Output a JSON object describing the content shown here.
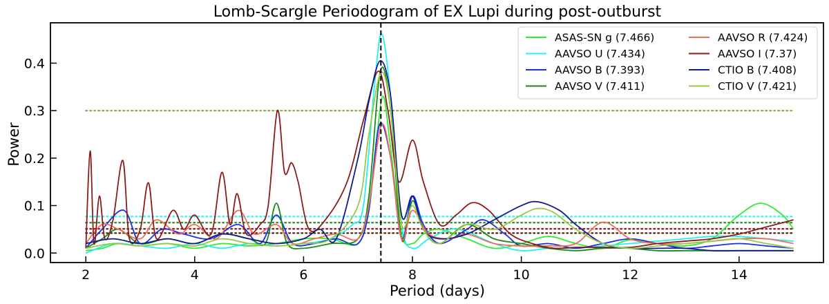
{
  "chart_data": {
    "type": "line",
    "title": "Lomb-Scargle Periodogram of EX Lupi during post-outburst",
    "xlabel": "Period (days)",
    "ylabel": "Power",
    "xlim": [
      1.35,
      15.55
    ],
    "ylim": [
      -0.02,
      0.485
    ],
    "xticks": [
      2,
      4,
      6,
      8,
      10,
      12,
      14
    ],
    "yticks": [
      0.0,
      0.1,
      0.2,
      0.3,
      0.4
    ],
    "ytick_labels": [
      "0.0",
      "0.1",
      "0.2",
      "0.3",
      "0.4"
    ],
    "vline": {
      "x": 7.42,
      "style": "dashed",
      "color": "#000000"
    },
    "threshold_lines": [
      {
        "y": 0.3,
        "xrange": [
          2,
          15
        ],
        "color": "#7fb347"
      },
      {
        "y": 0.077,
        "xrange": [
          2,
          15
        ],
        "color": "#33f0f0"
      },
      {
        "y": 0.064,
        "xrange": [
          2,
          15
        ],
        "color": "#2e8b2e"
      },
      {
        "y": 0.051,
        "xrange": [
          2,
          15
        ],
        "color": "#8b1a1a"
      },
      {
        "y": 0.042,
        "xrange": [
          2,
          15
        ],
        "color": "#4a2a10"
      }
    ],
    "legend_position": "top-right",
    "legend_columns": [
      [
        "ASAS-SN g (7.466)",
        "AAVSO U (7.434)",
        "AAVSO B (7.393)",
        "AAVSO V (7.411)"
      ],
      [
        "AAVSO R (7.424)",
        "AAVSO I (7.37)",
        "CTIO B (7.408)",
        "CTIO V (7.421)"
      ]
    ],
    "series": [
      {
        "name": "ASAS-SN g (7.466)",
        "color": "#2eec2e",
        "x": [
          2,
          2.3,
          2.6,
          3,
          3.5,
          4,
          4.5,
          5,
          5.5,
          6,
          6.5,
          7,
          7.2,
          7.35,
          7.466,
          7.6,
          7.8,
          8,
          8.2,
          8.5,
          9,
          9.5,
          10,
          10.5,
          11,
          11.5,
          12,
          12.5,
          13,
          13.5,
          14,
          14.4,
          14.8,
          15
        ],
        "values": [
          0.005,
          0.01,
          0.02,
          0.015,
          0.02,
          0.01,
          0.02,
          0.015,
          0.02,
          0.03,
          0.03,
          0.02,
          0.1,
          0.25,
          0.33,
          0.22,
          0.04,
          0.02,
          0.04,
          0.05,
          0.03,
          0.01,
          0.02,
          0.035,
          0.02,
          0.01,
          0.028,
          0.02,
          0.015,
          0.03,
          0.08,
          0.105,
          0.08,
          0.05
        ]
      },
      {
        "name": "AAVSO U (7.434)",
        "color": "#22f0f0",
        "x": [
          2,
          2.5,
          3,
          3.5,
          4,
          4.5,
          5,
          5.5,
          6,
          6.5,
          6.9,
          7.1,
          7.3,
          7.434,
          7.6,
          7.8,
          8,
          8.3,
          8.7,
          9,
          9.5,
          10,
          10.5,
          11,
          11.5,
          12,
          12.5,
          13,
          13.5,
          14,
          14.5,
          15
        ],
        "values": [
          0.0,
          0.02,
          0.015,
          0.01,
          0.02,
          0.01,
          0.02,
          0.015,
          0.02,
          0.03,
          0.06,
          0.1,
          0.35,
          0.462,
          0.33,
          0.06,
          0.01,
          0.03,
          0.05,
          0.045,
          0.02,
          0.005,
          0.01,
          0.01,
          0.015,
          0.02,
          0.025,
          0.03,
          0.035,
          0.035,
          0.03,
          0.025
        ]
      },
      {
        "name": "AAVSO B (7.393)",
        "color": "#1a2ee8",
        "x": [
          2,
          2.3,
          2.7,
          3,
          3.4,
          3.8,
          4.3,
          4.8,
          5.2,
          5.5,
          5.8,
          6.2,
          6.6,
          7,
          7.2,
          7.393,
          7.6,
          7.8,
          8,
          8.2,
          8.5,
          9,
          9.3,
          9.7,
          10,
          10.5,
          11,
          11.5,
          12,
          12.5,
          13,
          13.5,
          14,
          14.5,
          15
        ],
        "values": [
          0.01,
          0.05,
          0.09,
          0.02,
          0.05,
          0.04,
          0.03,
          0.06,
          0.02,
          0.08,
          0.02,
          0.02,
          0.03,
          0.02,
          0.09,
          0.27,
          0.2,
          0.03,
          0.12,
          0.06,
          0.02,
          0.05,
          0.07,
          0.04,
          0.015,
          0.02,
          0.01,
          0.02,
          0.03,
          0.02,
          0.01,
          0.015,
          0.02,
          0.015,
          0.01
        ]
      },
      {
        "name": "AAVSO V (7.411)",
        "color": "#1a8a1a",
        "x": [
          2,
          2.3,
          2.6,
          3,
          3.5,
          4,
          4.5,
          5,
          5.3,
          5.5,
          5.7,
          6,
          6.5,
          7,
          7.2,
          7.411,
          7.6,
          7.8,
          8,
          8.2,
          8.5,
          9,
          9.5,
          10,
          10.5,
          11,
          11.5,
          12,
          12.5,
          13,
          13.5,
          14,
          14.5,
          15
        ],
        "values": [
          0.01,
          0.03,
          0.05,
          0.02,
          0.03,
          0.02,
          0.04,
          0.03,
          0.02,
          0.105,
          0.02,
          0.01,
          0.02,
          0.03,
          0.12,
          0.383,
          0.3,
          0.03,
          0.11,
          0.05,
          0.02,
          0.06,
          0.03,
          0.02,
          0.01,
          0.005,
          0.01,
          0.01,
          0.005,
          0.005,
          0.005,
          0.005,
          0.005,
          0.005
        ]
      },
      {
        "name": "AAVSO R (7.424)",
        "color": "#f26c5a",
        "x": [
          2,
          2.3,
          2.6,
          3,
          3.3,
          3.7,
          4,
          4.4,
          4.8,
          5.1,
          5.5,
          5.8,
          6.2,
          6.6,
          7,
          7.2,
          7.424,
          7.6,
          7.8,
          8,
          8.3,
          8.7,
          9,
          9.5,
          10,
          10.5,
          11,
          11.5,
          12,
          12.5,
          13,
          13.5,
          14,
          14.5,
          15
        ],
        "values": [
          0.02,
          0.06,
          0.05,
          0.03,
          0.07,
          0.04,
          0.06,
          0.03,
          0.09,
          0.04,
          0.06,
          0.02,
          0.03,
          0.04,
          0.03,
          0.1,
          0.268,
          0.2,
          0.03,
          0.09,
          0.04,
          0.03,
          0.04,
          0.02,
          0.015,
          0.015,
          0.02,
          0.065,
          0.03,
          0.02,
          0.02,
          0.025,
          0.03,
          0.03,
          0.02
        ]
      },
      {
        "name": "AAVSO I (7.37)",
        "color": "#8b1a1a",
        "x": [
          2,
          2.08,
          2.15,
          2.25,
          2.35,
          2.5,
          2.68,
          2.8,
          3.0,
          3.15,
          3.3,
          3.6,
          3.8,
          4.0,
          4.3,
          4.5,
          4.65,
          4.78,
          4.95,
          5.2,
          5.35,
          5.52,
          5.65,
          5.78,
          5.9,
          6.1,
          6.4,
          6.8,
          7.1,
          7.37,
          7.55,
          7.75,
          8.0,
          8.2,
          8.5,
          8.8,
          9.1,
          9.4,
          9.8,
          10.2,
          10.6,
          11.0,
          11.5,
          12.0,
          12.5,
          13.0,
          13.5,
          14.0,
          14.5,
          15
        ],
        "values": [
          0.01,
          0.215,
          0.02,
          0.12,
          0.03,
          0.07,
          0.195,
          0.03,
          0.05,
          0.148,
          0.03,
          0.09,
          0.05,
          0.08,
          0.04,
          0.17,
          0.06,
          0.125,
          0.04,
          0.06,
          0.1,
          0.3,
          0.17,
          0.19,
          0.15,
          0.05,
          0.07,
          0.15,
          0.28,
          0.383,
          0.3,
          0.15,
          0.238,
          0.15,
          0.06,
          0.08,
          0.106,
          0.09,
          0.04,
          0.02,
          0.01,
          0.012,
          0.012,
          0.012,
          0.02,
          0.025,
          0.03,
          0.04,
          0.055,
          0.07
        ]
      },
      {
        "name": "CTIO B (7.408)",
        "color": "#101c8a",
        "x": [
          2,
          2.5,
          3,
          3.5,
          4,
          4.5,
          5,
          5.5,
          6,
          6.3,
          6.6,
          7,
          7.2,
          7.408,
          7.6,
          7.8,
          8,
          8.2,
          8.5,
          9,
          9.5,
          10,
          10.3,
          10.7,
          11,
          11.5,
          12,
          12.5,
          13,
          13.5,
          14,
          14.5,
          15
        ],
        "values": [
          0.02,
          0.03,
          0.02,
          0.03,
          0.02,
          0.04,
          0.03,
          0.02,
          0.03,
          0.05,
          0.03,
          0.2,
          0.32,
          0.405,
          0.33,
          0.08,
          0.12,
          0.05,
          0.03,
          0.04,
          0.07,
          0.1,
          0.108,
          0.09,
          0.06,
          0.02,
          0.01,
          0.01,
          0.01,
          0.005,
          0.005,
          0.005,
          0.005
        ]
      },
      {
        "name": "CTIO V (7.421)",
        "color": "#9ac845",
        "x": [
          2,
          2.5,
          3,
          3.5,
          4,
          4.5,
          5,
          5.5,
          6,
          6.5,
          7,
          7.2,
          7.421,
          7.6,
          7.8,
          8,
          8.2,
          8.5,
          9,
          9.5,
          10,
          10.3,
          10.6,
          11,
          11.5,
          12,
          12.5,
          13,
          13.5,
          14,
          14.5,
          15
        ],
        "values": [
          0.01,
          0.02,
          0.015,
          0.02,
          0.015,
          0.03,
          0.02,
          0.015,
          0.02,
          0.03,
          0.1,
          0.25,
          0.38,
          0.3,
          0.06,
          0.1,
          0.05,
          0.02,
          0.06,
          0.05,
          0.08,
          0.094,
          0.085,
          0.05,
          0.02,
          0.01,
          0.015,
          0.02,
          0.025,
          0.03,
          0.02,
          0.01
        ]
      }
    ]
  }
}
